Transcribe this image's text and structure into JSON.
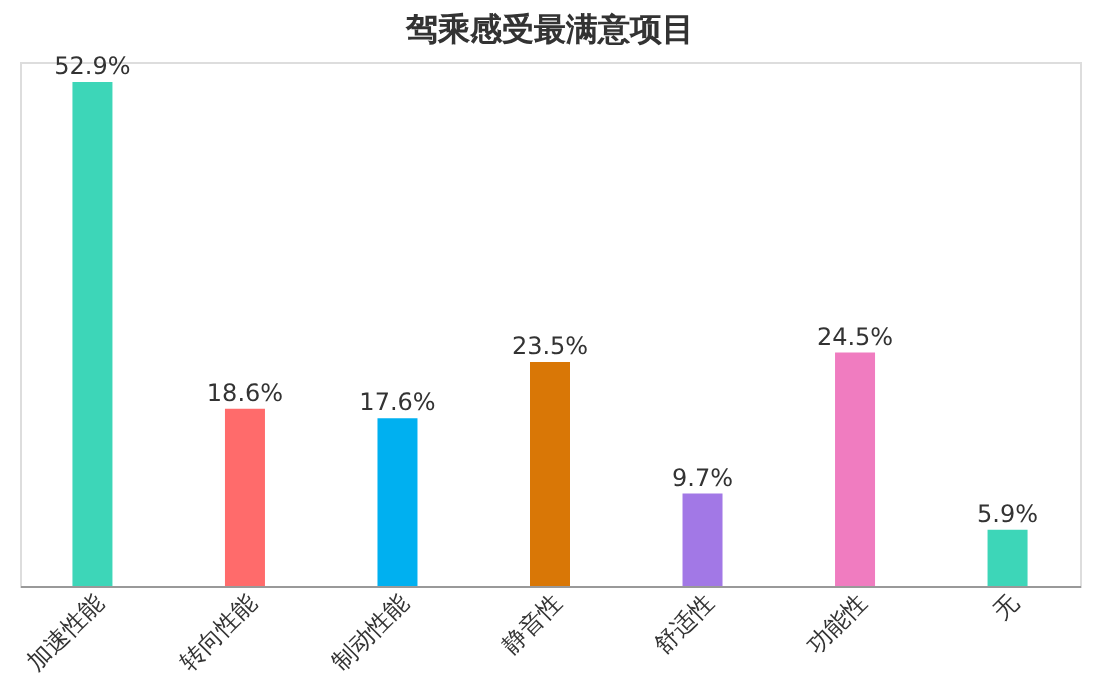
{
  "chart_data": {
    "type": "bar",
    "title": "驾乘感受最满意项目",
    "categories": [
      "加速性能",
      "转向性能",
      "制动性能",
      "静音性",
      "舒适性",
      "功能性",
      "无"
    ],
    "values": [
      52.9,
      18.6,
      17.6,
      23.5,
      9.7,
      24.5,
      5.9
    ],
    "colors": [
      "#3dd6b8",
      "#ff6b6b",
      "#00b0f0",
      "#d97706",
      "#a278e6",
      "#f07cc0",
      "#3dd6b8"
    ],
    "value_labels": [
      "52.9%",
      "18.6%",
      "17.6%",
      "23.5%",
      "9.7%",
      "24.5%",
      "5.9%"
    ],
    "grid": false,
    "legend": false
  }
}
